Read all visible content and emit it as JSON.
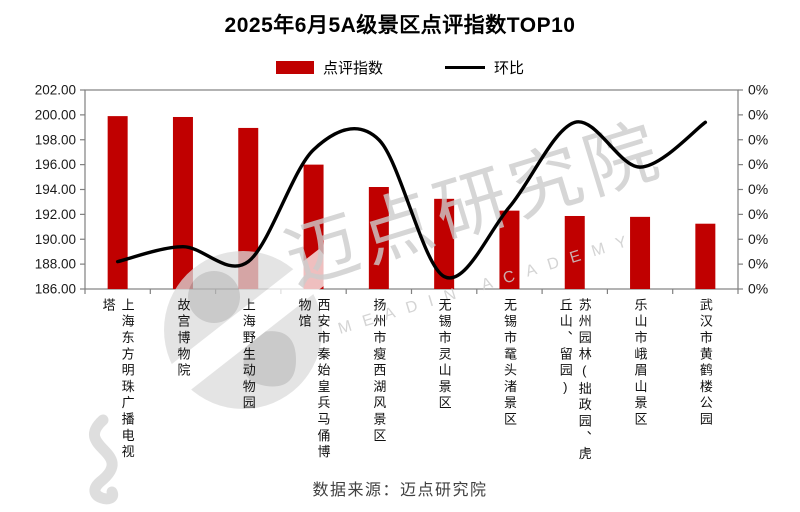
{
  "title": "2025年6月5A级景区点评指数TOP10",
  "legend": [
    {
      "label": "点评指数",
      "type": "bar",
      "color": "#C00000"
    },
    {
      "label": "环比",
      "type": "line",
      "color": "#000000"
    }
  ],
  "footer": "数据来源：迈点研究院",
  "watermark": {
    "text": "迈点研究院",
    "subtext": "MEADIN ACADEMY",
    "color": "#cccccc"
  },
  "colors": {
    "bar": "#C00000",
    "line": "#000000",
    "axis": "#808080",
    "tick_text": "#1a1a1a"
  },
  "chart_data": {
    "type": "combo",
    "title": "2025年6月5A级景区点评指数TOP10",
    "grid": false,
    "legend_position": "top",
    "categories": [
      "上海东方明珠广播电视塔",
      "故宫博物院",
      "上海野生动物园",
      "西安市秦始皇兵马俑博物馆",
      "扬州市瘦西湖风景区",
      "无锡市灵山景区",
      "无锡市鼋头渚景区",
      "苏州园林(拙政园、虎丘山、留园)",
      "乐山市峨眉山景区",
      "武汉市黄鹤楼公园"
    ],
    "series": [
      {
        "name": "点评指数",
        "type": "bar",
        "axis": "left",
        "color": "#C00000",
        "values": [
          199.9,
          199.83,
          198.95,
          196.0,
          194.2,
          193.25,
          192.3,
          191.87,
          191.8,
          191.25
        ]
      },
      {
        "name": "环比",
        "type": "line",
        "axis": "right",
        "color": "#000000",
        "values": [
          -0.29,
          -0.23,
          -0.29,
          0.16,
          0.2,
          -0.35,
          -0.07,
          0.27,
          0.09,
          0.27
        ]
      }
    ],
    "left_axis": {
      "min": 186,
      "max": 202,
      "step": 2,
      "tick_labels": [
        "202.00",
        "200.00",
        "198.00",
        "196.00",
        "194.00",
        "192.00",
        "190.00",
        "188.00",
        "186.00"
      ]
    },
    "right_axis": {
      "min": -0.4,
      "max": 0.4,
      "step": 0.1,
      "unit": "%",
      "tick_labels": [
        "0%",
        "0%",
        "0%",
        "0%",
        "0%",
        "0%",
        "0%",
        "0%",
        "0%"
      ]
    }
  }
}
